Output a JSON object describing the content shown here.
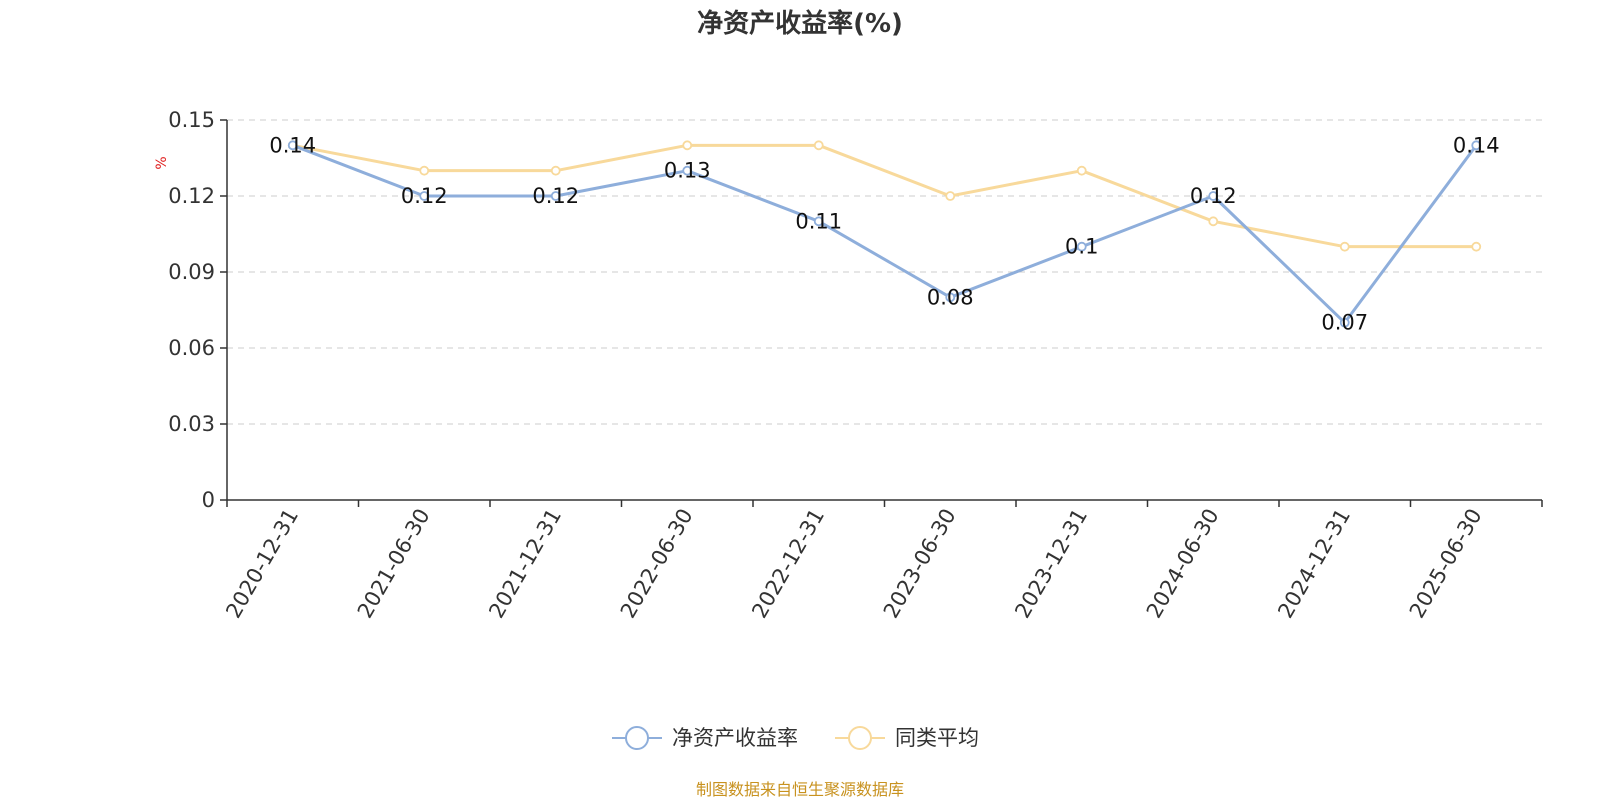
{
  "title": "净资产收益率(%)",
  "source": "制图数据来自恒生聚源数据库",
  "chart_data": {
    "type": "line",
    "title": "净资产收益率(%)",
    "ylabel": "%",
    "xlabel": "",
    "ylim": [
      0,
      0.15
    ],
    "yticks": [
      "0",
      "0.03",
      "0.06",
      "0.09",
      "0.12",
      "0.15"
    ],
    "grid": true,
    "legend_position": "bottom-center",
    "categories": [
      "2020-12-31",
      "2021-06-30",
      "2021-12-31",
      "2022-06-30",
      "2022-12-31",
      "2023-06-30",
      "2023-12-31",
      "2024-06-30",
      "2024-12-31",
      "2025-06-30"
    ],
    "series": [
      {
        "name": "净资产收益率",
        "color": "#8eaedb",
        "values": [
          0.14,
          0.12,
          0.12,
          0.13,
          0.11,
          0.08,
          0.1,
          0.12,
          0.07,
          0.14
        ],
        "labels": [
          "0.14",
          "0.12",
          "0.12",
          "0.13",
          "0.11",
          "0.08",
          "0.1",
          "0.12",
          "0.07",
          "0.14"
        ]
      },
      {
        "name": "同类平均",
        "color": "#f8d99b",
        "values": [
          0.14,
          0.13,
          0.13,
          0.14,
          0.14,
          0.12,
          0.13,
          0.11,
          0.1,
          0.1
        ]
      }
    ]
  }
}
